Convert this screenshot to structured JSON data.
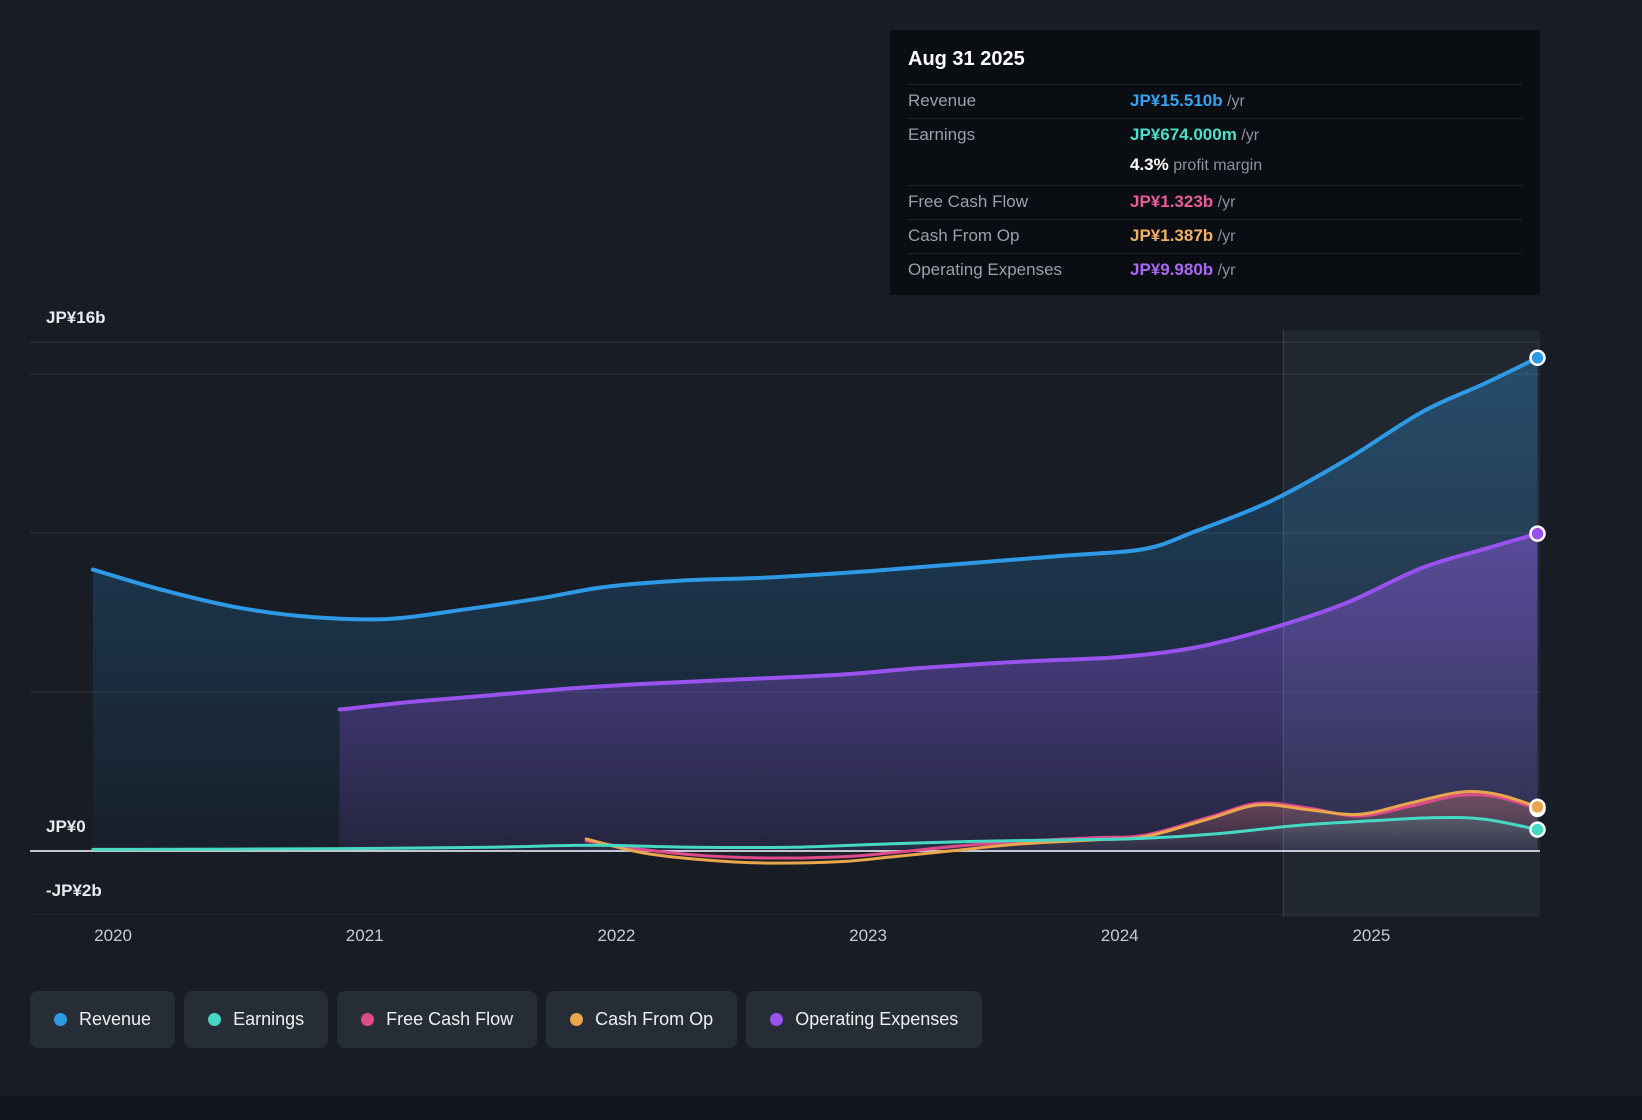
{
  "tooltip": {
    "date": "Aug 31 2025",
    "rows": [
      {
        "label": "Revenue",
        "value": "JP¥15.510b",
        "suffix": " /yr",
        "color": "#36a2f0"
      },
      {
        "label": "Earnings",
        "value": "JP¥674.000m",
        "suffix": " /yr",
        "color": "#4be0ca",
        "extra_value": "4.3%",
        "extra_text": " profit margin"
      },
      {
        "label": "Free Cash Flow",
        "value": "JP¥1.323b",
        "suffix": " /yr",
        "color": "#ea5d9c"
      },
      {
        "label": "Cash From Op",
        "value": "JP¥1.387b",
        "suffix": " /yr",
        "color": "#f0b068"
      },
      {
        "label": "Operating Expenses",
        "value": "JP¥9.980b",
        "suffix": " /yr",
        "color": "#a968f5"
      }
    ]
  },
  "legend": [
    {
      "label": "Revenue",
      "color": "#2e9ae6"
    },
    {
      "label": "Earnings",
      "color": "#45d9c4"
    },
    {
      "label": "Free Cash Flow",
      "color": "#df4a8b"
    },
    {
      "label": "Cash From Op",
      "color": "#eaa64d"
    },
    {
      "label": "Operating Expenses",
      "color": "#9a52ee"
    }
  ],
  "chart_data": {
    "type": "area",
    "currency": "JP¥",
    "x_unit": "year",
    "x_domain": [
      2019.67,
      2025.67
    ],
    "y_domain_billions": [
      -2.07,
      16.38
    ],
    "y_gridlines_billions": [
      16,
      15,
      10,
      5,
      0
    ],
    "y_axis_labels": [
      {
        "text": "JP¥16b",
        "value": 16
      },
      {
        "text": "JP¥0",
        "value": 0
      },
      {
        "text": "-JP¥2b",
        "value": -2
      }
    ],
    "x_ticks": [
      {
        "label": "2020",
        "value": 2020
      },
      {
        "label": "2021",
        "value": 2021
      },
      {
        "label": "2022",
        "value": 2022
      },
      {
        "label": "2023",
        "value": 2023
      },
      {
        "label": "2024",
        "value": 2024
      },
      {
        "label": "2025",
        "value": 2025
      }
    ],
    "divider_x": 2024.65,
    "legend_position": "bottom",
    "series": [
      {
        "name": "Revenue",
        "color": "#2e9ae6",
        "width": 4,
        "fill_top": 0.32,
        "fill_bottom": 0.03,
        "points": [
          [
            2019.92,
            8.85
          ],
          [
            2020.2,
            8.2
          ],
          [
            2020.5,
            7.65
          ],
          [
            2020.8,
            7.35
          ],
          [
            2021.1,
            7.3
          ],
          [
            2021.4,
            7.6
          ],
          [
            2021.7,
            7.95
          ],
          [
            2021.95,
            8.3
          ],
          [
            2022.25,
            8.5
          ],
          [
            2022.6,
            8.6
          ],
          [
            2023.0,
            8.8
          ],
          [
            2023.4,
            9.05
          ],
          [
            2023.8,
            9.3
          ],
          [
            2024.1,
            9.5
          ],
          [
            2024.3,
            10.05
          ],
          [
            2024.6,
            11.0
          ],
          [
            2024.9,
            12.3
          ],
          [
            2025.2,
            13.8
          ],
          [
            2025.45,
            14.7
          ],
          [
            2025.66,
            15.51
          ]
        ]
      },
      {
        "name": "Earnings",
        "color": "#45d9c4",
        "width": 3,
        "fill_top": 0.15,
        "fill_bottom": 0.02,
        "points": [
          [
            2019.92,
            0.05
          ],
          [
            2020.5,
            0.06
          ],
          [
            2021.0,
            0.08
          ],
          [
            2021.5,
            0.12
          ],
          [
            2021.9,
            0.18
          ],
          [
            2022.3,
            0.12
          ],
          [
            2022.7,
            0.12
          ],
          [
            2023.0,
            0.2
          ],
          [
            2023.4,
            0.3
          ],
          [
            2023.8,
            0.35
          ],
          [
            2024.1,
            0.4
          ],
          [
            2024.4,
            0.55
          ],
          [
            2024.7,
            0.8
          ],
          [
            2025.0,
            0.95
          ],
          [
            2025.25,
            1.05
          ],
          [
            2025.45,
            1.0
          ],
          [
            2025.66,
            0.674
          ]
        ]
      },
      {
        "name": "Free Cash Flow",
        "color": "#df4a8b",
        "width": 3,
        "fill_top": 0.18,
        "fill_bottom": 0.02,
        "points": [
          [
            2021.88,
            0.32
          ],
          [
            2022.1,
            0.05
          ],
          [
            2022.35,
            -0.15
          ],
          [
            2022.6,
            -0.22
          ],
          [
            2022.9,
            -0.18
          ],
          [
            2023.1,
            -0.05
          ],
          [
            2023.35,
            0.15
          ],
          [
            2023.6,
            0.3
          ],
          [
            2023.9,
            0.42
          ],
          [
            2024.1,
            0.5
          ],
          [
            2024.35,
            1.05
          ],
          [
            2024.55,
            1.5
          ],
          [
            2024.75,
            1.35
          ],
          [
            2024.95,
            1.1
          ],
          [
            2025.15,
            1.4
          ],
          [
            2025.35,
            1.75
          ],
          [
            2025.5,
            1.7
          ],
          [
            2025.66,
            1.323
          ]
        ]
      },
      {
        "name": "Cash From Op",
        "color": "#eaa64d",
        "width": 3,
        "fill_top": 0.2,
        "fill_bottom": 0.02,
        "points": [
          [
            2021.88,
            0.38
          ],
          [
            2022.1,
            -0.05
          ],
          [
            2022.35,
            -0.28
          ],
          [
            2022.6,
            -0.38
          ],
          [
            2022.9,
            -0.33
          ],
          [
            2023.1,
            -0.18
          ],
          [
            2023.35,
            0.02
          ],
          [
            2023.6,
            0.22
          ],
          [
            2023.9,
            0.35
          ],
          [
            2024.1,
            0.45
          ],
          [
            2024.35,
            1.0
          ],
          [
            2024.55,
            1.45
          ],
          [
            2024.75,
            1.3
          ],
          [
            2024.95,
            1.15
          ],
          [
            2025.15,
            1.5
          ],
          [
            2025.35,
            1.85
          ],
          [
            2025.5,
            1.78
          ],
          [
            2025.66,
            1.387
          ]
        ]
      },
      {
        "name": "Operating Expenses",
        "color": "#9a52ee",
        "width": 4,
        "fill_top": 0.45,
        "fill_bottom": 0.1,
        "points": [
          [
            2020.9,
            4.45
          ],
          [
            2021.2,
            4.7
          ],
          [
            2021.5,
            4.9
          ],
          [
            2021.8,
            5.1
          ],
          [
            2022.1,
            5.25
          ],
          [
            2022.5,
            5.4
          ],
          [
            2022.9,
            5.55
          ],
          [
            2023.2,
            5.75
          ],
          [
            2023.6,
            5.95
          ],
          [
            2024.0,
            6.1
          ],
          [
            2024.3,
            6.4
          ],
          [
            2024.6,
            7.0
          ],
          [
            2024.9,
            7.8
          ],
          [
            2025.2,
            8.9
          ],
          [
            2025.45,
            9.5
          ],
          [
            2025.66,
            9.98
          ]
        ]
      }
    ]
  }
}
